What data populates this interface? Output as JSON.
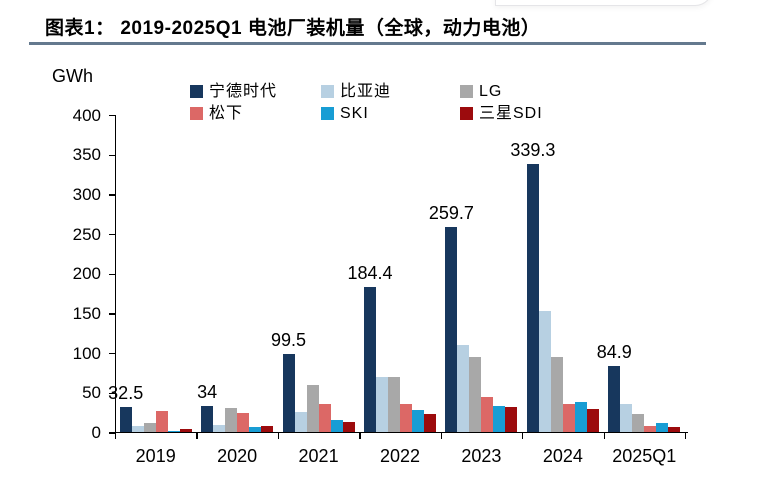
{
  "page": {
    "title": "图表1： 2019-2025Q1 电池厂装机量（全球，动力电池）",
    "title_underline_color": "#64798e",
    "background": "#ffffff"
  },
  "chart_data": {
    "type": "bar",
    "title": "2019-2025Q1 电池厂装机量（全球，动力电池）",
    "xlabel": "",
    "ylabel": "GWh",
    "ylim": [
      0,
      400
    ],
    "yticks": [
      0,
      50,
      100,
      150,
      200,
      250,
      300,
      350,
      400
    ],
    "grid": false,
    "legend_position": "top",
    "categories": [
      "2019",
      "2020",
      "2021",
      "2022",
      "2023",
      "2024",
      "2025Q1"
    ],
    "series": [
      {
        "name": "宁德时代",
        "color": "#17375d",
        "values": [
          32.5,
          34,
          99.5,
          184.4,
          259.7,
          339.3,
          84.9
        ],
        "labels": [
          "32.5",
          "34",
          "99.5",
          "184.4",
          "259.7",
          "339.3",
          "84.9"
        ]
      },
      {
        "name": "比亚迪",
        "color": "#b7d0e2",
        "values": [
          9,
          10,
          26,
          70,
          111,
          154,
          37
        ]
      },
      {
        "name": "LG",
        "color": "#a8a8a8",
        "values": [
          12.5,
          31,
          60,
          71,
          96,
          96,
          24
        ]
      },
      {
        "name": "松下",
        "color": "#dc6866",
        "values": [
          28,
          25,
          36,
          36,
          45,
          36,
          9
        ]
      },
      {
        "name": "SKI",
        "color": "#189dd4",
        "values": [
          2,
          7,
          17,
          29,
          34,
          39,
          12
        ]
      },
      {
        "name": "三星SDI",
        "color": "#9c0b0d",
        "values": [
          4.5,
          8.5,
          14,
          24,
          33,
          30,
          8
        ]
      }
    ]
  }
}
